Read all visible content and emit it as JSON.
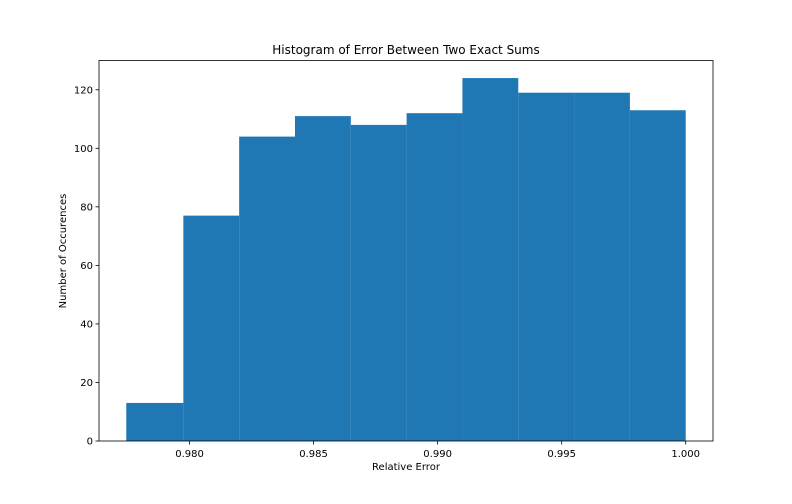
{
  "chart_data": {
    "type": "bar",
    "title": "Histogram of Error Between Two Exact Sums",
    "xlabel": "Relative Error",
    "ylabel": "Number of Occurences",
    "bin_edges": [
      0.97745,
      0.97975,
      0.982,
      0.98425,
      0.9865,
      0.98875,
      0.991,
      0.99325,
      0.9955,
      0.99775,
      1.0
    ],
    "values": [
      13,
      77,
      104,
      111,
      108,
      112,
      124,
      119,
      119,
      113
    ],
    "xlim": [
      0.97635,
      1.0011
    ],
    "ylim": [
      0,
      130
    ],
    "x_ticks": [
      0.98,
      0.985,
      0.99,
      0.995,
      1.0
    ],
    "x_tick_labels": [
      "0.980",
      "0.985",
      "0.990",
      "0.995",
      "1.000"
    ],
    "y_ticks": [
      0,
      20,
      40,
      60,
      80,
      100,
      120
    ],
    "y_tick_labels": [
      "0",
      "20",
      "40",
      "60",
      "80",
      "100",
      "120"
    ],
    "bar_color": "#1f77b4",
    "grid": false,
    "legend": "none"
  }
}
